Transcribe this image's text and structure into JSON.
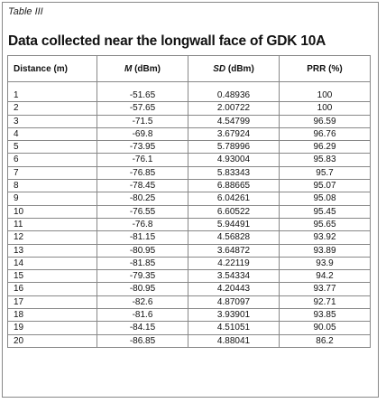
{
  "table_label": "Table III",
  "title": "Data collected near the longwall face of GDK 10A",
  "columns": [
    {
      "label": "Distance (m)"
    },
    {
      "italic": "M",
      "unit": " (dBm)"
    },
    {
      "italic": "SD",
      "unit": " (dBm)"
    },
    {
      "label": "PRR (%)"
    }
  ],
  "rows": [
    [
      "1",
      "-51.65",
      "0.48936",
      "100"
    ],
    [
      "2",
      "-57.65",
      "2.00722",
      "100"
    ],
    [
      "3",
      "-71.5",
      "4.54799",
      "96.59"
    ],
    [
      "4",
      "-69.8",
      "3.67924",
      "96.76"
    ],
    [
      "5",
      "-73.95",
      "5.78996",
      "96.29"
    ],
    [
      "6",
      "-76.1",
      "4.93004",
      "95.83"
    ],
    [
      "7",
      "-76.85",
      "5.83343",
      "95.7"
    ],
    [
      "8",
      "-78.45",
      "6.88665",
      "95.07"
    ],
    [
      "9",
      "-80.25",
      "6.04261",
      "95.08"
    ],
    [
      "10",
      "-76.55",
      "6.60522",
      "95.45"
    ],
    [
      "11",
      "-76.8",
      "5.94491",
      "95.65"
    ],
    [
      "12",
      "-81.15",
      "4.56828",
      "93.92"
    ],
    [
      "13",
      "-80.95",
      "3.64872",
      "93.89"
    ],
    [
      "14",
      "-81.85",
      "4.22119",
      "93.9"
    ],
    [
      "15",
      "-79.35",
      "3.54334",
      "94.2"
    ],
    [
      "16",
      "-80.95",
      "4.20443",
      "93.77"
    ],
    [
      "17",
      "-82.6",
      "4.87097",
      "92.71"
    ],
    [
      "18",
      "-81.6",
      "3.93901",
      "93.85"
    ],
    [
      "19",
      "-84.15",
      "4.51051",
      "90.05"
    ],
    [
      "20",
      "-86.85",
      "4.88041",
      "86.2"
    ]
  ]
}
